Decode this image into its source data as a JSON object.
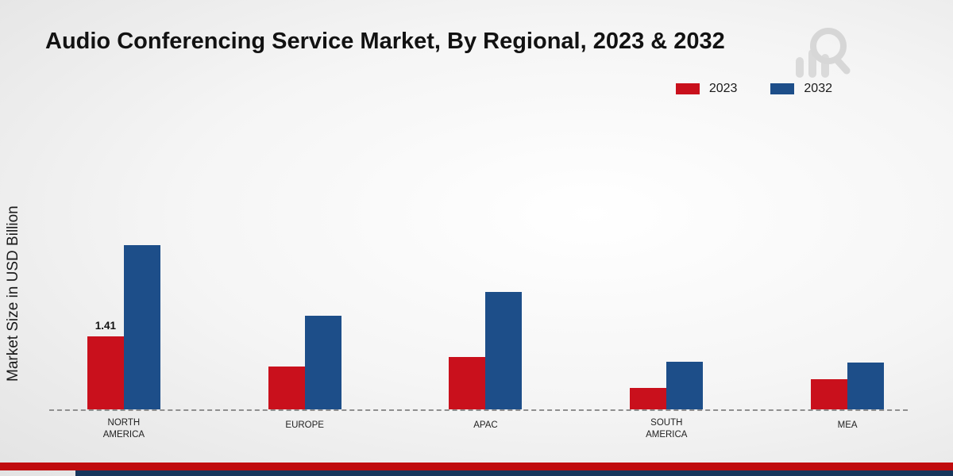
{
  "title": "Audio Conferencing Service Market, By Regional, 2023 & 2032",
  "ylabel": "Market Size in USD Billion",
  "colors": {
    "accent_red": "#c9101c",
    "accent_blue": "#1d4e89",
    "footer_red": "#c00b0e",
    "footer_blue": "#16365c"
  },
  "chart_data": {
    "type": "bar",
    "title": "Audio Conferencing Service Market, By Regional, 2023 & 2032",
    "xlabel": "",
    "ylabel": "Market Size in USD Billion",
    "categories": [
      "NORTH AMERICA",
      "EUROPE",
      "APAC",
      "SOUTH AMERICA",
      "MEA"
    ],
    "series": [
      {
        "name": "2023",
        "color": "#c9101c",
        "values": [
          1.41,
          0.83,
          1.01,
          0.41,
          0.58
        ]
      },
      {
        "name": "2032",
        "color": "#1d4e89",
        "values": [
          3.19,
          1.82,
          2.27,
          0.92,
          0.9
        ]
      }
    ],
    "value_labels": {
      "NORTH AMERICA": {
        "2023": "1.41"
      }
    },
    "ylim": [
      0,
      3.5
    ],
    "grid": false,
    "legend_position": "top-right",
    "baseline_style": "dashed"
  }
}
